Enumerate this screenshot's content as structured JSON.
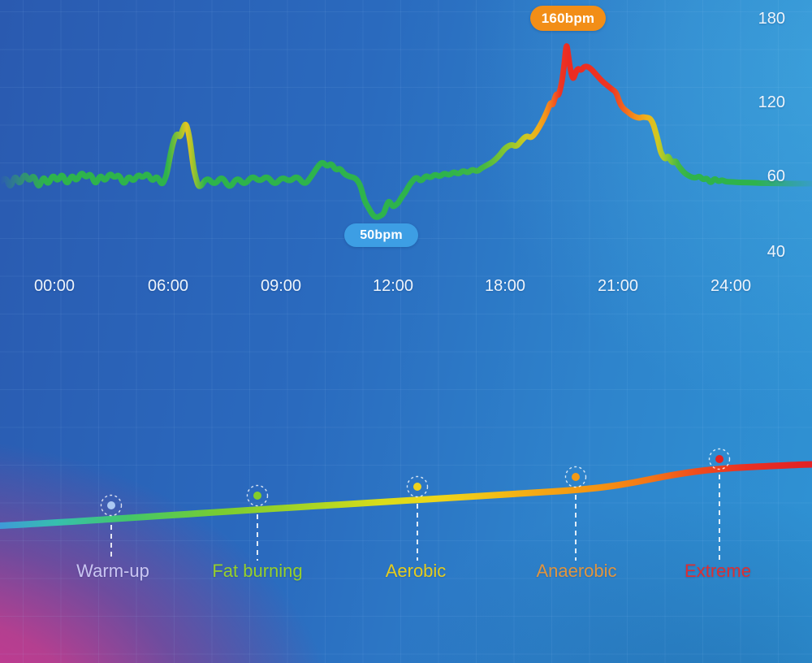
{
  "chart_data": {
    "type": "line",
    "x_tick_labels": [
      "00:00",
      "06:00",
      "09:00",
      "12:00",
      "18:00",
      "21:00",
      "24:00"
    ],
    "x_tick_minutes": [
      0,
      360,
      540,
      720,
      1080,
      1260,
      1440
    ],
    "y_tick_labels": [
      "180",
      "120",
      "60",
      "40"
    ],
    "y_ticks": [
      180,
      120,
      60,
      40
    ],
    "ylim": [
      30,
      190
    ],
    "grid": "faint square grid",
    "legend_position": "none",
    "annotations": [
      {
        "label": "160bpm",
        "time_minutes": 1178,
        "bpm": 160,
        "badge_color": "#f28e17"
      },
      {
        "label": "50bpm",
        "time_minutes": 694,
        "bpm": 50,
        "badge_color": "#3d9ee4"
      }
    ],
    "series": [
      {
        "name": "heart-rate-bpm",
        "points": [
          [
            -170,
            59
          ],
          [
            -155,
            62
          ],
          [
            -140,
            57
          ],
          [
            -125,
            63
          ],
          [
            -110,
            58
          ],
          [
            -95,
            64
          ],
          [
            -80,
            59
          ],
          [
            -65,
            63
          ],
          [
            -50,
            57
          ],
          [
            -35,
            62
          ],
          [
            -20,
            58
          ],
          [
            -5,
            63
          ],
          [
            10,
            59
          ],
          [
            25,
            64
          ],
          [
            40,
            58
          ],
          [
            55,
            63
          ],
          [
            70,
            59
          ],
          [
            85,
            65
          ],
          [
            100,
            60
          ],
          [
            115,
            64
          ],
          [
            130,
            58
          ],
          [
            145,
            63
          ],
          [
            160,
            59
          ],
          [
            175,
            64
          ],
          [
            190,
            60
          ],
          [
            205,
            63
          ],
          [
            220,
            58
          ],
          [
            235,
            62
          ],
          [
            250,
            59
          ],
          [
            265,
            63
          ],
          [
            280,
            60
          ],
          [
            295,
            64
          ],
          [
            310,
            59
          ],
          [
            325,
            62
          ],
          [
            340,
            58
          ],
          [
            352,
            60
          ],
          [
            358,
            66
          ],
          [
            364,
            80
          ],
          [
            370,
            92
          ],
          [
            375,
            96
          ],
          [
            379,
            92
          ],
          [
            384,
            100
          ],
          [
            388,
            104
          ],
          [
            392,
            98
          ],
          [
            396,
            86
          ],
          [
            400,
            70
          ],
          [
            404,
            60
          ],
          [
            410,
            57
          ],
          [
            422,
            61
          ],
          [
            434,
            58
          ],
          [
            446,
            62
          ],
          [
            458,
            57
          ],
          [
            470,
            61
          ],
          [
            482,
            58
          ],
          [
            494,
            62
          ],
          [
            506,
            59
          ],
          [
            518,
            62
          ],
          [
            530,
            58
          ],
          [
            542,
            61
          ],
          [
            554,
            59
          ],
          [
            566,
            62
          ],
          [
            578,
            58
          ],
          [
            590,
            62
          ],
          [
            600,
            70
          ],
          [
            607,
            73
          ],
          [
            614,
            69
          ],
          [
            621,
            72
          ],
          [
            628,
            66
          ],
          [
            635,
            68
          ],
          [
            642,
            63
          ],
          [
            650,
            61
          ],
          [
            660,
            60
          ],
          [
            668,
            58
          ],
          [
            674,
            54
          ],
          [
            681,
            52
          ],
          [
            688,
            50
          ],
          [
            694,
            49.5
          ],
          [
            700,
            50
          ],
          [
            705,
            50.5
          ],
          [
            710,
            53
          ],
          [
            714,
            54
          ],
          [
            719,
            52.5
          ],
          [
            724,
            52.5
          ],
          [
            731,
            53
          ],
          [
            738,
            53.5
          ],
          [
            748,
            55
          ],
          [
            758,
            56
          ],
          [
            768,
            57.5
          ],
          [
            780,
            59
          ],
          [
            795,
            61
          ],
          [
            810,
            59
          ],
          [
            825,
            62
          ],
          [
            840,
            60
          ],
          [
            855,
            63
          ],
          [
            870,
            61
          ],
          [
            885,
            64
          ],
          [
            900,
            62
          ],
          [
            915,
            65
          ],
          [
            930,
            63
          ],
          [
            945,
            66
          ],
          [
            960,
            64
          ],
          [
            975,
            67
          ],
          [
            990,
            65
          ],
          [
            1005,
            68
          ],
          [
            1020,
            70
          ],
          [
            1035,
            72
          ],
          [
            1050,
            75
          ],
          [
            1065,
            79
          ],
          [
            1080,
            84
          ],
          [
            1090,
            87
          ],
          [
            1098,
            85
          ],
          [
            1106,
            90
          ],
          [
            1114,
            94
          ],
          [
            1122,
            92
          ],
          [
            1130,
            97
          ],
          [
            1138,
            104
          ],
          [
            1144,
            110
          ],
          [
            1149,
            116
          ],
          [
            1153,
            121
          ],
          [
            1156,
            118
          ],
          [
            1159,
            123
          ],
          [
            1162,
            127
          ],
          [
            1165,
            125
          ],
          [
            1168,
            130
          ],
          [
            1171,
            136
          ],
          [
            1174,
            146
          ],
          [
            1176,
            155
          ],
          [
            1178,
            162
          ],
          [
            1180,
            157
          ],
          [
            1183,
            147
          ],
          [
            1186,
            140
          ],
          [
            1189,
            137
          ],
          [
            1192,
            141
          ],
          [
            1196,
            145
          ],
          [
            1201,
            143
          ],
          [
            1206,
            146
          ],
          [
            1212,
            146
          ],
          [
            1218,
            144
          ],
          [
            1226,
            140
          ],
          [
            1234,
            136
          ],
          [
            1242,
            133
          ],
          [
            1250,
            130
          ],
          [
            1257,
            128
          ],
          [
            1263,
            120
          ],
          [
            1268,
            116
          ],
          [
            1273,
            114
          ],
          [
            1278,
            112
          ],
          [
            1283,
            110
          ],
          [
            1288,
            109
          ],
          [
            1294,
            108
          ],
          [
            1300,
            109
          ],
          [
            1306,
            108.5
          ],
          [
            1311,
            108
          ],
          [
            1316,
            104
          ],
          [
            1320,
            97
          ],
          [
            1324,
            90
          ],
          [
            1328,
            81
          ],
          [
            1332,
            77
          ],
          [
            1336,
            75
          ],
          [
            1340,
            78
          ],
          [
            1344,
            74
          ],
          [
            1348,
            72
          ],
          [
            1352,
            74
          ],
          [
            1356,
            70
          ],
          [
            1361,
            67
          ],
          [
            1366,
            64
          ],
          [
            1372,
            62
          ],
          [
            1378,
            60.5
          ],
          [
            1384,
            60
          ],
          [
            1390,
            61.5
          ],
          [
            1396,
            59.5
          ],
          [
            1402,
            60
          ],
          [
            1408,
            58.5
          ],
          [
            1414,
            60
          ],
          [
            1420,
            59
          ],
          [
            1426,
            59.5
          ],
          [
            1432,
            59
          ],
          [
            1440,
            59
          ],
          [
            1452,
            58.8
          ],
          [
            1468,
            58.8
          ],
          [
            1488,
            58.6
          ],
          [
            1510,
            58.6
          ],
          [
            1535,
            58.5
          ],
          [
            1569,
            58.5
          ]
        ]
      }
    ],
    "zones": [
      {
        "label": "Warm-up",
        "label_color": "#c9c5f1",
        "dot_color": "#abc9f3"
      },
      {
        "label": "Fat burning",
        "label_color": "#97d02a",
        "dot_color": "#84cc29"
      },
      {
        "label": "Aerobic",
        "label_color": "#e5cc1d",
        "dot_color": "#eed21c"
      },
      {
        "label": "Anaerobic",
        "label_color": "#e0953f",
        "dot_color": "#f29a16"
      },
      {
        "label": "Extreme",
        "label_color": "#dc2f33",
        "dot_color": "#e52320"
      }
    ]
  }
}
